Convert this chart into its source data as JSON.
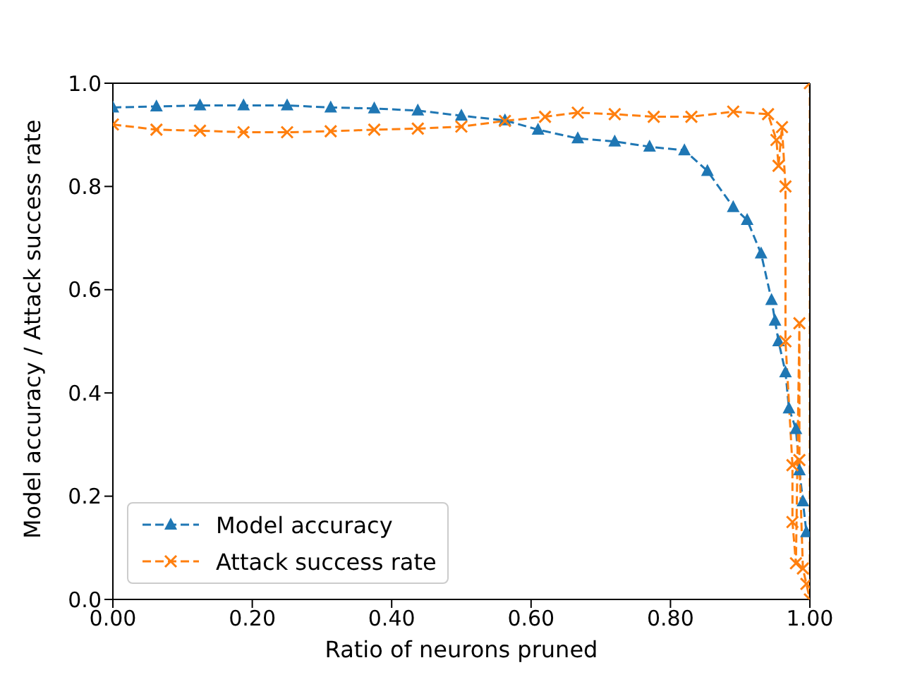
{
  "chart_data": {
    "type": "line",
    "xlabel": "Ratio of neurons pruned",
    "ylabel": "Model accuracy / Attack success rate",
    "xlim": [
      0,
      1
    ],
    "ylim": [
      0,
      1
    ],
    "xticks": [
      {
        "value": 0,
        "label": "0.00"
      },
      {
        "value": 0.2,
        "label": "0.20"
      },
      {
        "value": 0.4,
        "label": "0.40"
      },
      {
        "value": 0.6,
        "label": "0.60"
      },
      {
        "value": 0.8,
        "label": "0.80"
      },
      {
        "value": 1,
        "label": "1.00"
      }
    ],
    "yticks": [
      {
        "value": 0,
        "label": "0.0"
      },
      {
        "value": 0.2,
        "label": "0.2"
      },
      {
        "value": 0.4,
        "label": "0.4"
      },
      {
        "value": 0.6,
        "label": "0.6"
      },
      {
        "value": 0.8,
        "label": "0.8"
      },
      {
        "value": 1,
        "label": "1.0"
      }
    ],
    "grid": false,
    "legend": "bottom left",
    "line_style": "dashed",
    "series": [
      {
        "name": "Model accuracy",
        "color": "#1f77b4",
        "marker": "triangle",
        "x": [
          0,
          0.0625,
          0.125,
          0.1875,
          0.25,
          0.3125,
          0.375,
          0.4375,
          0.5,
          0.5625,
          0.61,
          0.667,
          0.72,
          0.77,
          0.82,
          0.853,
          0.89,
          0.91,
          0.93,
          0.945,
          0.95,
          0.955,
          0.965,
          0.97,
          0.98,
          0.985,
          0.99,
          0.995
        ],
        "values": [
          0.953,
          0.955,
          0.957,
          0.957,
          0.957,
          0.953,
          0.951,
          0.947,
          0.937,
          0.928,
          0.91,
          0.893,
          0.887,
          0.877,
          0.87,
          0.83,
          0.76,
          0.735,
          0.67,
          0.58,
          0.54,
          0.5,
          0.44,
          0.37,
          0.33,
          0.25,
          0.19,
          0.13
        ]
      },
      {
        "name": "Attack success rate",
        "color": "#ff7f0e",
        "marker": "cross",
        "x": [
          0,
          0.0625,
          0.125,
          0.1875,
          0.25,
          0.3125,
          0.375,
          0.4375,
          0.5,
          0.5625,
          0.62,
          0.667,
          0.72,
          0.776,
          0.83,
          0.89,
          0.94,
          0.952,
          0.955,
          0.96,
          0.965,
          0.965,
          0.975,
          0.975,
          0.98,
          0.985,
          0.985,
          0.99,
          0.995,
          1,
          1
        ],
        "values": [
          0.92,
          0.91,
          0.908,
          0.905,
          0.905,
          0.907,
          0.91,
          0.912,
          0.916,
          0.927,
          0.935,
          0.943,
          0.94,
          0.935,
          0.935,
          0.945,
          0.94,
          0.89,
          0.84,
          0.915,
          0.8,
          0.5,
          0.26,
          0.15,
          0.07,
          0.535,
          0.27,
          0.06,
          0.03,
          0,
          1
        ]
      }
    ]
  }
}
